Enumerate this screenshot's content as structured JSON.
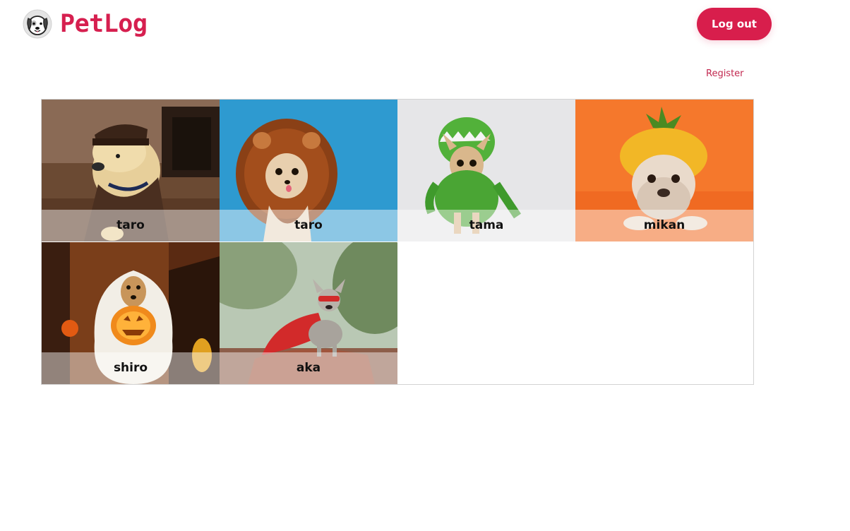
{
  "app": {
    "name": "PetLog",
    "logo_icon": "dog-face-icon"
  },
  "header": {
    "logout_label": "Log out",
    "register_label": "Register"
  },
  "colors": {
    "brand": "#d61f4f",
    "button_bg": "#d81e4c",
    "link": "#c2284f"
  },
  "pets": [
    {
      "name": "taro",
      "photo": "dog in delivery uniform"
    },
    {
      "name": "taro",
      "photo": "chihuahua in lion mane"
    },
    {
      "name": "tama",
      "photo": "chihuahua in dinosaur costume"
    },
    {
      "name": "mikan",
      "photo": "bulldog in pineapple hat"
    },
    {
      "name": "shiro",
      "photo": "dog ghost with pumpkin"
    },
    {
      "name": "aka",
      "photo": "french bulldog superhero"
    }
  ]
}
